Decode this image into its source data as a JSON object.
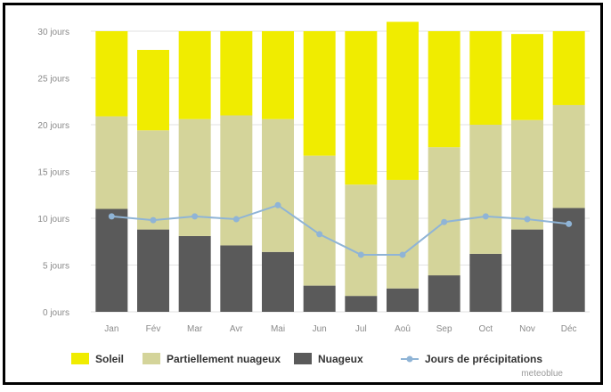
{
  "chart_data": {
    "type": "bar",
    "stacked": true,
    "categories": [
      "Jan",
      "Fév",
      "Mar",
      "Avr",
      "Mai",
      "Jun",
      "Jul",
      "Aoû",
      "Sep",
      "Oct",
      "Nov",
      "Déc"
    ],
    "series": [
      {
        "name": "Nuageux",
        "color": "#5a5a5a",
        "values": [
          11.0,
          8.8,
          8.1,
          7.1,
          6.4,
          2.8,
          1.7,
          2.5,
          3.9,
          6.2,
          8.8,
          11.1
        ]
      },
      {
        "name": "Partiellement nuageux",
        "color": "#d4d49a",
        "values": [
          9.9,
          10.6,
          12.5,
          13.9,
          14.2,
          13.9,
          11.9,
          11.6,
          13.7,
          13.8,
          11.7,
          11.0
        ]
      },
      {
        "name": "Soleil",
        "color": "#f0ec00",
        "values": [
          9.1,
          8.6,
          9.4,
          9.0,
          9.4,
          13.3,
          16.4,
          16.9,
          12.4,
          10.0,
          9.2,
          7.9
        ]
      }
    ],
    "line_series": {
      "name": "Jours de précipitations",
      "color": "#8fb4d6",
      "values": [
        10.2,
        9.8,
        10.2,
        9.9,
        11.4,
        8.3,
        6.1,
        6.1,
        9.6,
        10.2,
        9.9,
        9.4
      ]
    },
    "ylim": [
      0,
      30
    ],
    "yticks": [
      0,
      5,
      10,
      15,
      20,
      25,
      30
    ],
    "ytick_labels": [
      "0 jours",
      "5 jours",
      "10 jours",
      "15 jours",
      "20 jours",
      "25 jours",
      "30 jours"
    ],
    "grid": true,
    "legend_position": "bottom",
    "legend": [
      {
        "label": "Soleil",
        "color": "#f0ec00",
        "kind": "box"
      },
      {
        "label": "Partiellement nuageux",
        "color": "#d4d49a",
        "kind": "box"
      },
      {
        "label": "Nuageux",
        "color": "#5a5a5a",
        "kind": "box"
      },
      {
        "label": "Jours de précipitations",
        "color": "#8fb4d6",
        "kind": "line"
      }
    ],
    "credit": "meteoblue"
  }
}
